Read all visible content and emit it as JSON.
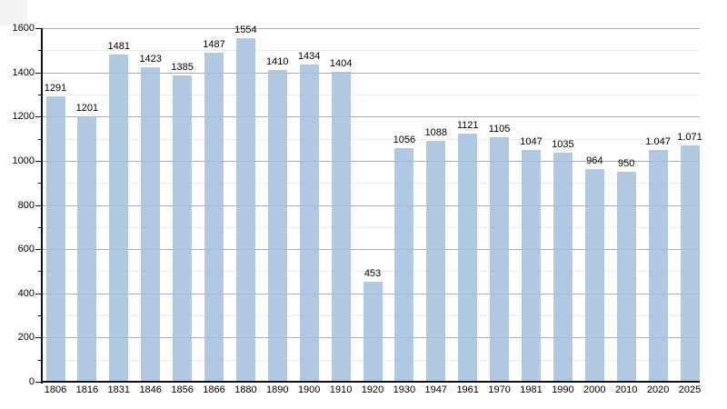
{
  "chart_data": {
    "type": "bar",
    "title": "",
    "xlabel": "",
    "ylabel": "",
    "categories": [
      "1806",
      "1816",
      "1831",
      "1846",
      "1856",
      "1866",
      "1880",
      "1890",
      "1900",
      "1910",
      "1920",
      "1930",
      "1947",
      "1961",
      "1970",
      "1981",
      "1990",
      "2000",
      "2010",
      "2020",
      "2025"
    ],
    "values": [
      1291,
      1201,
      1481,
      1423,
      1385,
      1487,
      1554,
      1410,
      1434,
      1404,
      453,
      1056,
      1088,
      1121,
      1105,
      1047,
      1035,
      964,
      950,
      1047,
      1071
    ],
    "value_labels": [
      "1291",
      "1201",
      "1481",
      "1423",
      "1385",
      "1487",
      "1554",
      "1410",
      "1434",
      "1404",
      "453",
      "1056",
      "1088",
      "1121",
      "1105",
      "1047",
      "1035",
      "964",
      "950",
      "1.047",
      "1.071"
    ],
    "y_axis": {
      "min": 0,
      "max": 1600,
      "major_step": 200,
      "minor_step": 100,
      "major_tick_labels": [
        "0",
        "200",
        "400",
        "600",
        "800",
        "1000",
        "1200",
        "1400",
        "1600"
      ]
    },
    "legend": "none",
    "grid": "major-and-minor-horizontal",
    "colors": {
      "bar_fill": "rgba(162,190,221,0.85)",
      "major_gridline": "#ababab",
      "minor_gridline": "#ececec",
      "axis": "#111111",
      "label_text": "#000000",
      "background": "#ffffff",
      "corner_artifact": "#f4f3f3"
    }
  }
}
